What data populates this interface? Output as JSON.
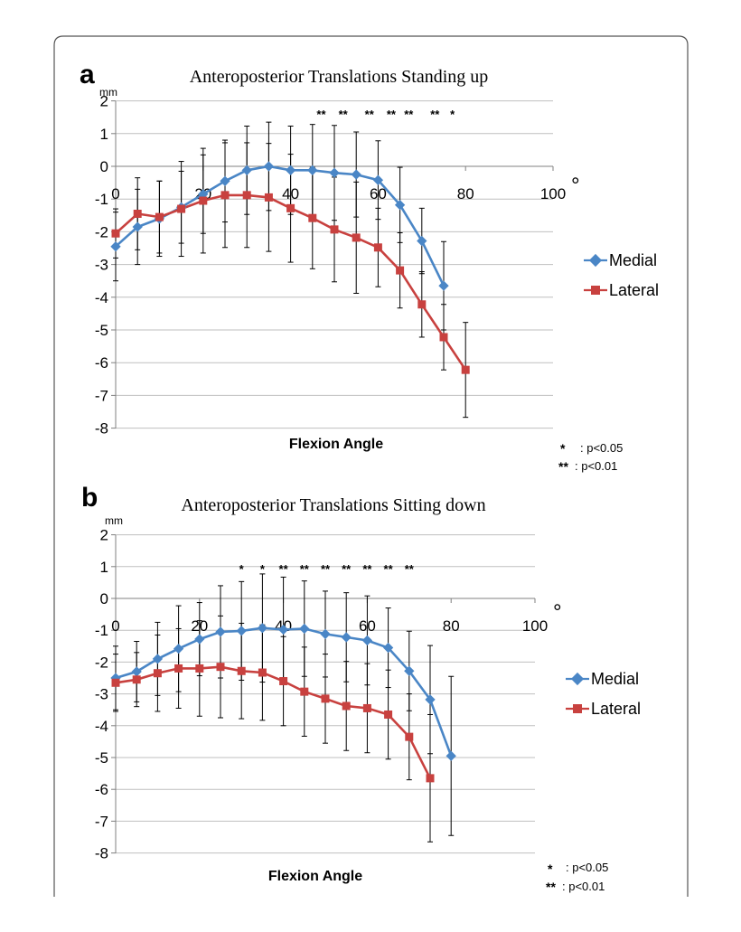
{
  "figure": {
    "colors": {
      "medial": "#4a86c6",
      "lateral": "#c8413f"
    },
    "notes": [
      {
        "symbol": "*",
        "text": ": p<0.05"
      },
      {
        "symbol": "**",
        "text": ": p<0.01"
      }
    ]
  },
  "chart_data": [
    {
      "type": "line",
      "panel_label": "a",
      "title": "Anteroposterior Translations Standing up",
      "ylabel": "mm",
      "xlabel": "Flexion Angle",
      "x_unit": "°",
      "xlim": [
        0,
        100
      ],
      "ylim": [
        -8,
        2
      ],
      "xticks": [
        0,
        20,
        40,
        60,
        80,
        100
      ],
      "yticks": [
        2,
        1,
        0,
        -1,
        -2,
        -3,
        -4,
        -5,
        -6,
        -7,
        -8
      ],
      "legend": [
        "Medial",
        "Lateral"
      ],
      "series": [
        {
          "name": "Medial",
          "x": [
            0,
            5,
            10,
            15,
            20,
            25,
            30,
            35,
            40,
            45,
            50,
            55,
            60,
            65,
            70,
            75
          ],
          "y": [
            -2.45,
            -1.85,
            -1.6,
            -1.25,
            -0.85,
            -0.45,
            -0.12,
            0,
            -0.12,
            -0.12,
            -0.2,
            -0.25,
            -0.42,
            -1.18,
            -2.28,
            -3.65
          ],
          "err": [
            1.05,
            1.15,
            1.15,
            1.1,
            1.2,
            1.25,
            1.35,
            1.35,
            1.35,
            1.4,
            1.45,
            1.3,
            1.2,
            1.15,
            1.0,
            1.35
          ]
        },
        {
          "name": "Lateral",
          "x": [
            0,
            5,
            10,
            15,
            20,
            25,
            30,
            35,
            40,
            45,
            50,
            55,
            60,
            65,
            70,
            75,
            80
          ],
          "y": [
            -2.05,
            -1.45,
            -1.55,
            -1.3,
            -1.05,
            -0.88,
            -0.88,
            -0.95,
            -1.28,
            -1.58,
            -1.93,
            -2.18,
            -2.48,
            -3.18,
            -4.22,
            -5.22,
            -6.22
          ],
          "err": [
            0.75,
            1.1,
            1.1,
            1.45,
            1.6,
            1.6,
            1.6,
            1.65,
            1.65,
            1.55,
            1.6,
            1.7,
            1.2,
            1.15,
            1.0,
            1.0,
            1.45
          ]
        }
      ],
      "annotations": [
        {
          "x": 47,
          "text": "**"
        },
        {
          "x": 52,
          "text": "**"
        },
        {
          "x": 58,
          "text": "**"
        },
        {
          "x": 63,
          "text": "**"
        },
        {
          "x": 67,
          "text": "**"
        },
        {
          "x": 73,
          "text": "**"
        },
        {
          "x": 77,
          "text": "*"
        }
      ]
    },
    {
      "type": "line",
      "panel_label": "b",
      "title": "Anteroposterior Translations Sitting down",
      "ylabel": "mm",
      "xlabel": "Flexion Angle",
      "x_unit": "°",
      "xlim": [
        0,
        100
      ],
      "ylim": [
        -8,
        2
      ],
      "xticks": [
        0,
        20,
        40,
        60,
        80,
        100
      ],
      "yticks": [
        2,
        1,
        0,
        -1,
        -2,
        -3,
        -4,
        -5,
        -6,
        -7,
        -8
      ],
      "legend": [
        "Medial",
        "Lateral"
      ],
      "series": [
        {
          "name": "Medial",
          "x": [
            0,
            5,
            10,
            15,
            20,
            25,
            30,
            35,
            40,
            45,
            50,
            55,
            60,
            65,
            70,
            75,
            80
          ],
          "y": [
            -2.5,
            -2.3,
            -1.9,
            -1.58,
            -1.28,
            -1.05,
            -1.02,
            -0.93,
            -0.98,
            -0.95,
            -1.12,
            -1.22,
            -1.32,
            -1.55,
            -2.28,
            -3.18,
            -4.95
          ],
          "err": [
            1.0,
            0.95,
            1.15,
            1.35,
            1.15,
            1.45,
            1.55,
            1.7,
            1.65,
            1.5,
            1.35,
            1.4,
            1.4,
            1.25,
            1.25,
            1.7,
            2.5
          ]
        },
        {
          "name": "Lateral",
          "x": [
            0,
            5,
            10,
            15,
            20,
            25,
            30,
            35,
            40,
            45,
            50,
            55,
            60,
            65,
            70,
            75
          ],
          "y": [
            -2.65,
            -2.55,
            -2.35,
            -2.2,
            -2.2,
            -2.15,
            -2.28,
            -2.33,
            -2.6,
            -2.93,
            -3.15,
            -3.38,
            -3.45,
            -3.65,
            -4.35,
            -5.65
          ],
          "err": [
            0.9,
            0.85,
            1.2,
            1.25,
            1.5,
            1.6,
            1.5,
            1.5,
            1.4,
            1.4,
            1.4,
            1.4,
            1.4,
            1.4,
            1.35,
            2.0
          ]
        }
      ],
      "annotations": [
        {
          "x": 30,
          "text": "*"
        },
        {
          "x": 35,
          "text": "*"
        },
        {
          "x": 40,
          "text": "**"
        },
        {
          "x": 45,
          "text": "**"
        },
        {
          "x": 50,
          "text": "**"
        },
        {
          "x": 55,
          "text": "**"
        },
        {
          "x": 60,
          "text": "**"
        },
        {
          "x": 65,
          "text": "**"
        },
        {
          "x": 70,
          "text": "**"
        }
      ]
    }
  ]
}
